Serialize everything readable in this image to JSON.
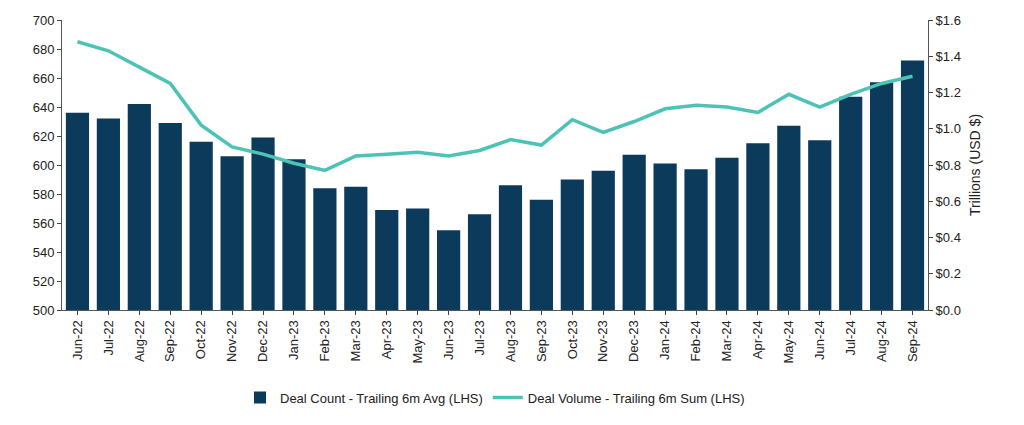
{
  "chart_data": {
    "type": "bar",
    "categories": [
      "Jun-22",
      "Jul-22",
      "Aug-22",
      "Sep-22",
      "Oct-22",
      "Nov-22",
      "Dec-22",
      "Jan-23",
      "Feb-23",
      "Mar-23",
      "Apr-23",
      "May-23",
      "Jun-23",
      "Jul-23",
      "Aug-23",
      "Sep-23",
      "Oct-23",
      "Nov-23",
      "Dec-23",
      "Jan-24",
      "Feb-24",
      "Mar-24",
      "Apr-24",
      "May-24",
      "Jun-24",
      "Jul-24",
      "Aug-24",
      "Sep-24"
    ],
    "series": [
      {
        "name": "Deal Count - Trailing 6m Avg (LHS)",
        "type": "bar",
        "color": "#0b3a5b",
        "values": [
          636,
          632,
          642,
          629,
          616,
          606,
          619,
          604,
          584,
          585,
          569,
          570,
          555,
          566,
          586,
          576,
          590,
          596,
          607,
          601,
          597,
          605,
          615,
          627,
          617,
          647,
          657,
          672
        ]
      },
      {
        "name": "Deal Volume - Trailing 6m Sum (LHS)",
        "type": "line",
        "axis": "y2",
        "color": "#4cc3b6",
        "values": [
          1.48,
          1.43,
          1.34,
          1.25,
          1.02,
          0.9,
          0.86,
          0.81,
          0.77,
          0.85,
          0.86,
          0.87,
          0.85,
          0.88,
          0.94,
          0.91,
          1.05,
          0.98,
          1.04,
          1.11,
          1.13,
          1.12,
          1.09,
          1.19,
          1.12,
          1.19,
          1.25,
          1.29
        ]
      }
    ],
    "ylim": [
      500,
      700
    ],
    "yticks": [
      500,
      520,
      540,
      560,
      580,
      600,
      620,
      640,
      660,
      680,
      700
    ],
    "y2lim": [
      0,
      1.6
    ],
    "y2ticks": [
      {
        "value": 0,
        "label": "$0.0"
      },
      {
        "value": 0.2,
        "label": "$0.2"
      },
      {
        "value": 0.4,
        "label": "$0.4"
      },
      {
        "value": 0.6,
        "label": "$0.6"
      },
      {
        "value": 0.8,
        "label": "$0.8"
      },
      {
        "value": 1.0,
        "label": "$1.0"
      },
      {
        "value": 1.2,
        "label": "$1.2"
      },
      {
        "value": 1.4,
        "label": "$1.4"
      },
      {
        "value": 1.6,
        "label": "$1.6"
      }
    ],
    "y2_label": "Trillions (USD $)",
    "grid": false,
    "legend": "bottom"
  }
}
